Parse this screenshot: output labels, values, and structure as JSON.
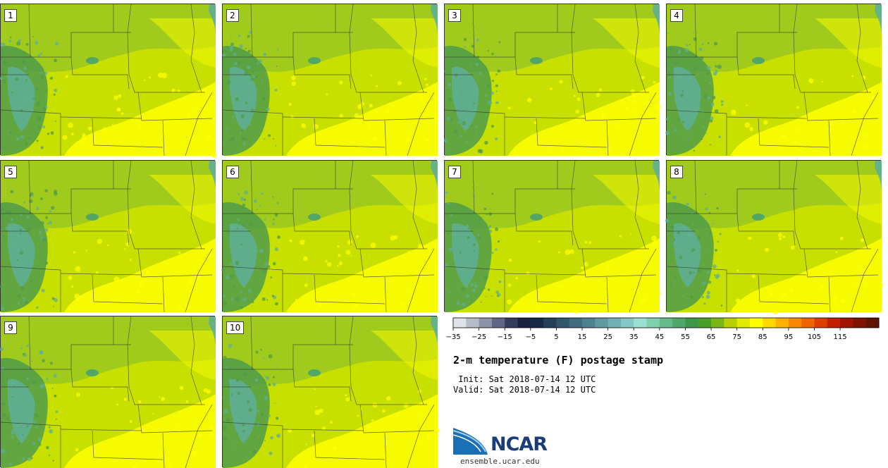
{
  "panels": [
    "1",
    "2",
    "3",
    "4",
    "5",
    "6",
    "7",
    "8",
    "9",
    "10"
  ],
  "colorbar": {
    "colors": [
      "#dfe2e8",
      "#b6bbc8",
      "#8d93a8",
      "#5f6784",
      "#323d5d",
      "#18243f",
      "#162a45",
      "#224056",
      "#2f5669",
      "#3f6b7c",
      "#4f8290",
      "#5f99a2",
      "#71b0b4",
      "#84c7c5",
      "#9be0d3",
      "#80d0ad",
      "#66bb8b",
      "#4fa86a",
      "#3c9849",
      "#4a9f27",
      "#7ab616",
      "#b8d000",
      "#e2ea00",
      "#ffff00",
      "#ffd800",
      "#ffb000",
      "#f98a00",
      "#ef6300",
      "#dd3d00",
      "#c21f00",
      "#a01300",
      "#7f1200",
      "#5f1300"
    ],
    "tick_values": [
      "−35",
      "−25",
      "−15",
      "−5",
      "5",
      "15",
      "25",
      "35",
      "45",
      "55",
      "65",
      "75",
      "85",
      "95",
      "105",
      "115"
    ]
  },
  "title": "2-m temperature (F) postage stamp",
  "init": " Init: Sat 2018-07-14 12 UTC",
  "valid": "Valid: Sat 2018-07-14 12 UTC",
  "logo": {
    "name": "NCAR",
    "colors": {
      "text": "#1a3c78",
      "swoosh": "#1b6fb5"
    }
  },
  "url": "ensemble.ucar.edu",
  "map_colors": {
    "base": "#c8e000",
    "north_green": "#8ec22a",
    "south_yellow": "#ffff00",
    "east_yellow": "#eef500",
    "mountain_dark": "#4f9b4a",
    "mountain_cool": "#5faf94",
    "boundary": "#333333",
    "lake": "#3f9e7a"
  }
}
